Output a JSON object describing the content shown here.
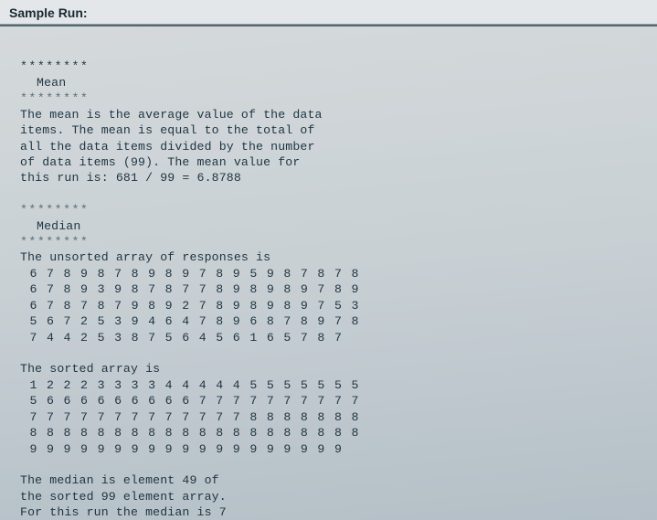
{
  "colors": {
    "page_bg_top": "#d6dadc",
    "page_bg_bottom": "#b4bfc7",
    "header_bg": "#e4e7e9",
    "header_text": "#1a2a33",
    "rule": "#5a6a74",
    "text": "#1e3442",
    "sep_dim": "#5a6e79"
  },
  "typography": {
    "header_font": "Arial",
    "header_size_pt": 11,
    "header_weight": "bold",
    "mono_font": "Lucida Console",
    "mono_size_pt": 10,
    "line_height": 1.32
  },
  "header": {
    "title": "Sample Run:"
  },
  "separator": "********",
  "mean_section": {
    "title": "Mean",
    "text_lines": [
      "The mean is the average value of the data",
      "items. The mean is equal to the total of",
      "all the data items divided by the number",
      "of data items (99). The mean value for",
      "this run is: 681 / 99 = 6.8788"
    ],
    "total": 681,
    "count": 99,
    "mean": 6.8788
  },
  "median_section": {
    "title": "Median",
    "unsorted_heading": "The unsorted array of responses is",
    "unsorted_rows": [
      [
        6,
        7,
        8,
        9,
        8,
        7,
        8,
        9,
        8,
        9,
        7,
        8,
        9,
        5,
        9,
        8,
        7,
        8,
        7,
        8
      ],
      [
        6,
        7,
        8,
        9,
        3,
        9,
        8,
        7,
        8,
        7,
        7,
        8,
        9,
        8,
        9,
        8,
        9,
        7,
        8,
        9
      ],
      [
        6,
        7,
        8,
        7,
        8,
        7,
        9,
        8,
        9,
        2,
        7,
        8,
        9,
        8,
        9,
        8,
        9,
        7,
        5,
        3
      ],
      [
        5,
        6,
        7,
        2,
        5,
        3,
        9,
        4,
        6,
        4,
        7,
        8,
        9,
        6,
        8,
        7,
        8,
        9,
        7,
        8
      ],
      [
        7,
        4,
        4,
        2,
        5,
        3,
        8,
        7,
        5,
        6,
        4,
        5,
        6,
        1,
        6,
        5,
        7,
        8,
        7
      ]
    ],
    "sorted_heading": "The sorted array is",
    "sorted_rows": [
      [
        1,
        2,
        2,
        2,
        3,
        3,
        3,
        3,
        4,
        4,
        4,
        4,
        4,
        5,
        5,
        5,
        5,
        5,
        5,
        5
      ],
      [
        5,
        6,
        6,
        6,
        6,
        6,
        6,
        6,
        6,
        6,
        7,
        7,
        7,
        7,
        7,
        7,
        7,
        7,
        7,
        7
      ],
      [
        7,
        7,
        7,
        7,
        7,
        7,
        7,
        7,
        7,
        7,
        7,
        7,
        7,
        8,
        8,
        8,
        8,
        8,
        8,
        8
      ],
      [
        8,
        8,
        8,
        8,
        8,
        8,
        8,
        8,
        8,
        8,
        8,
        8,
        8,
        8,
        8,
        8,
        8,
        8,
        8,
        8
      ],
      [
        9,
        9,
        9,
        9,
        9,
        9,
        9,
        9,
        9,
        9,
        9,
        9,
        9,
        9,
        9,
        9,
        9,
        9,
        9
      ]
    ],
    "result_lines": [
      "The median is element 49 of",
      "the sorted 99 element array.",
      "For this run the median is 7"
    ],
    "median_element_index": 49,
    "array_size": 99,
    "median_value": 7
  }
}
